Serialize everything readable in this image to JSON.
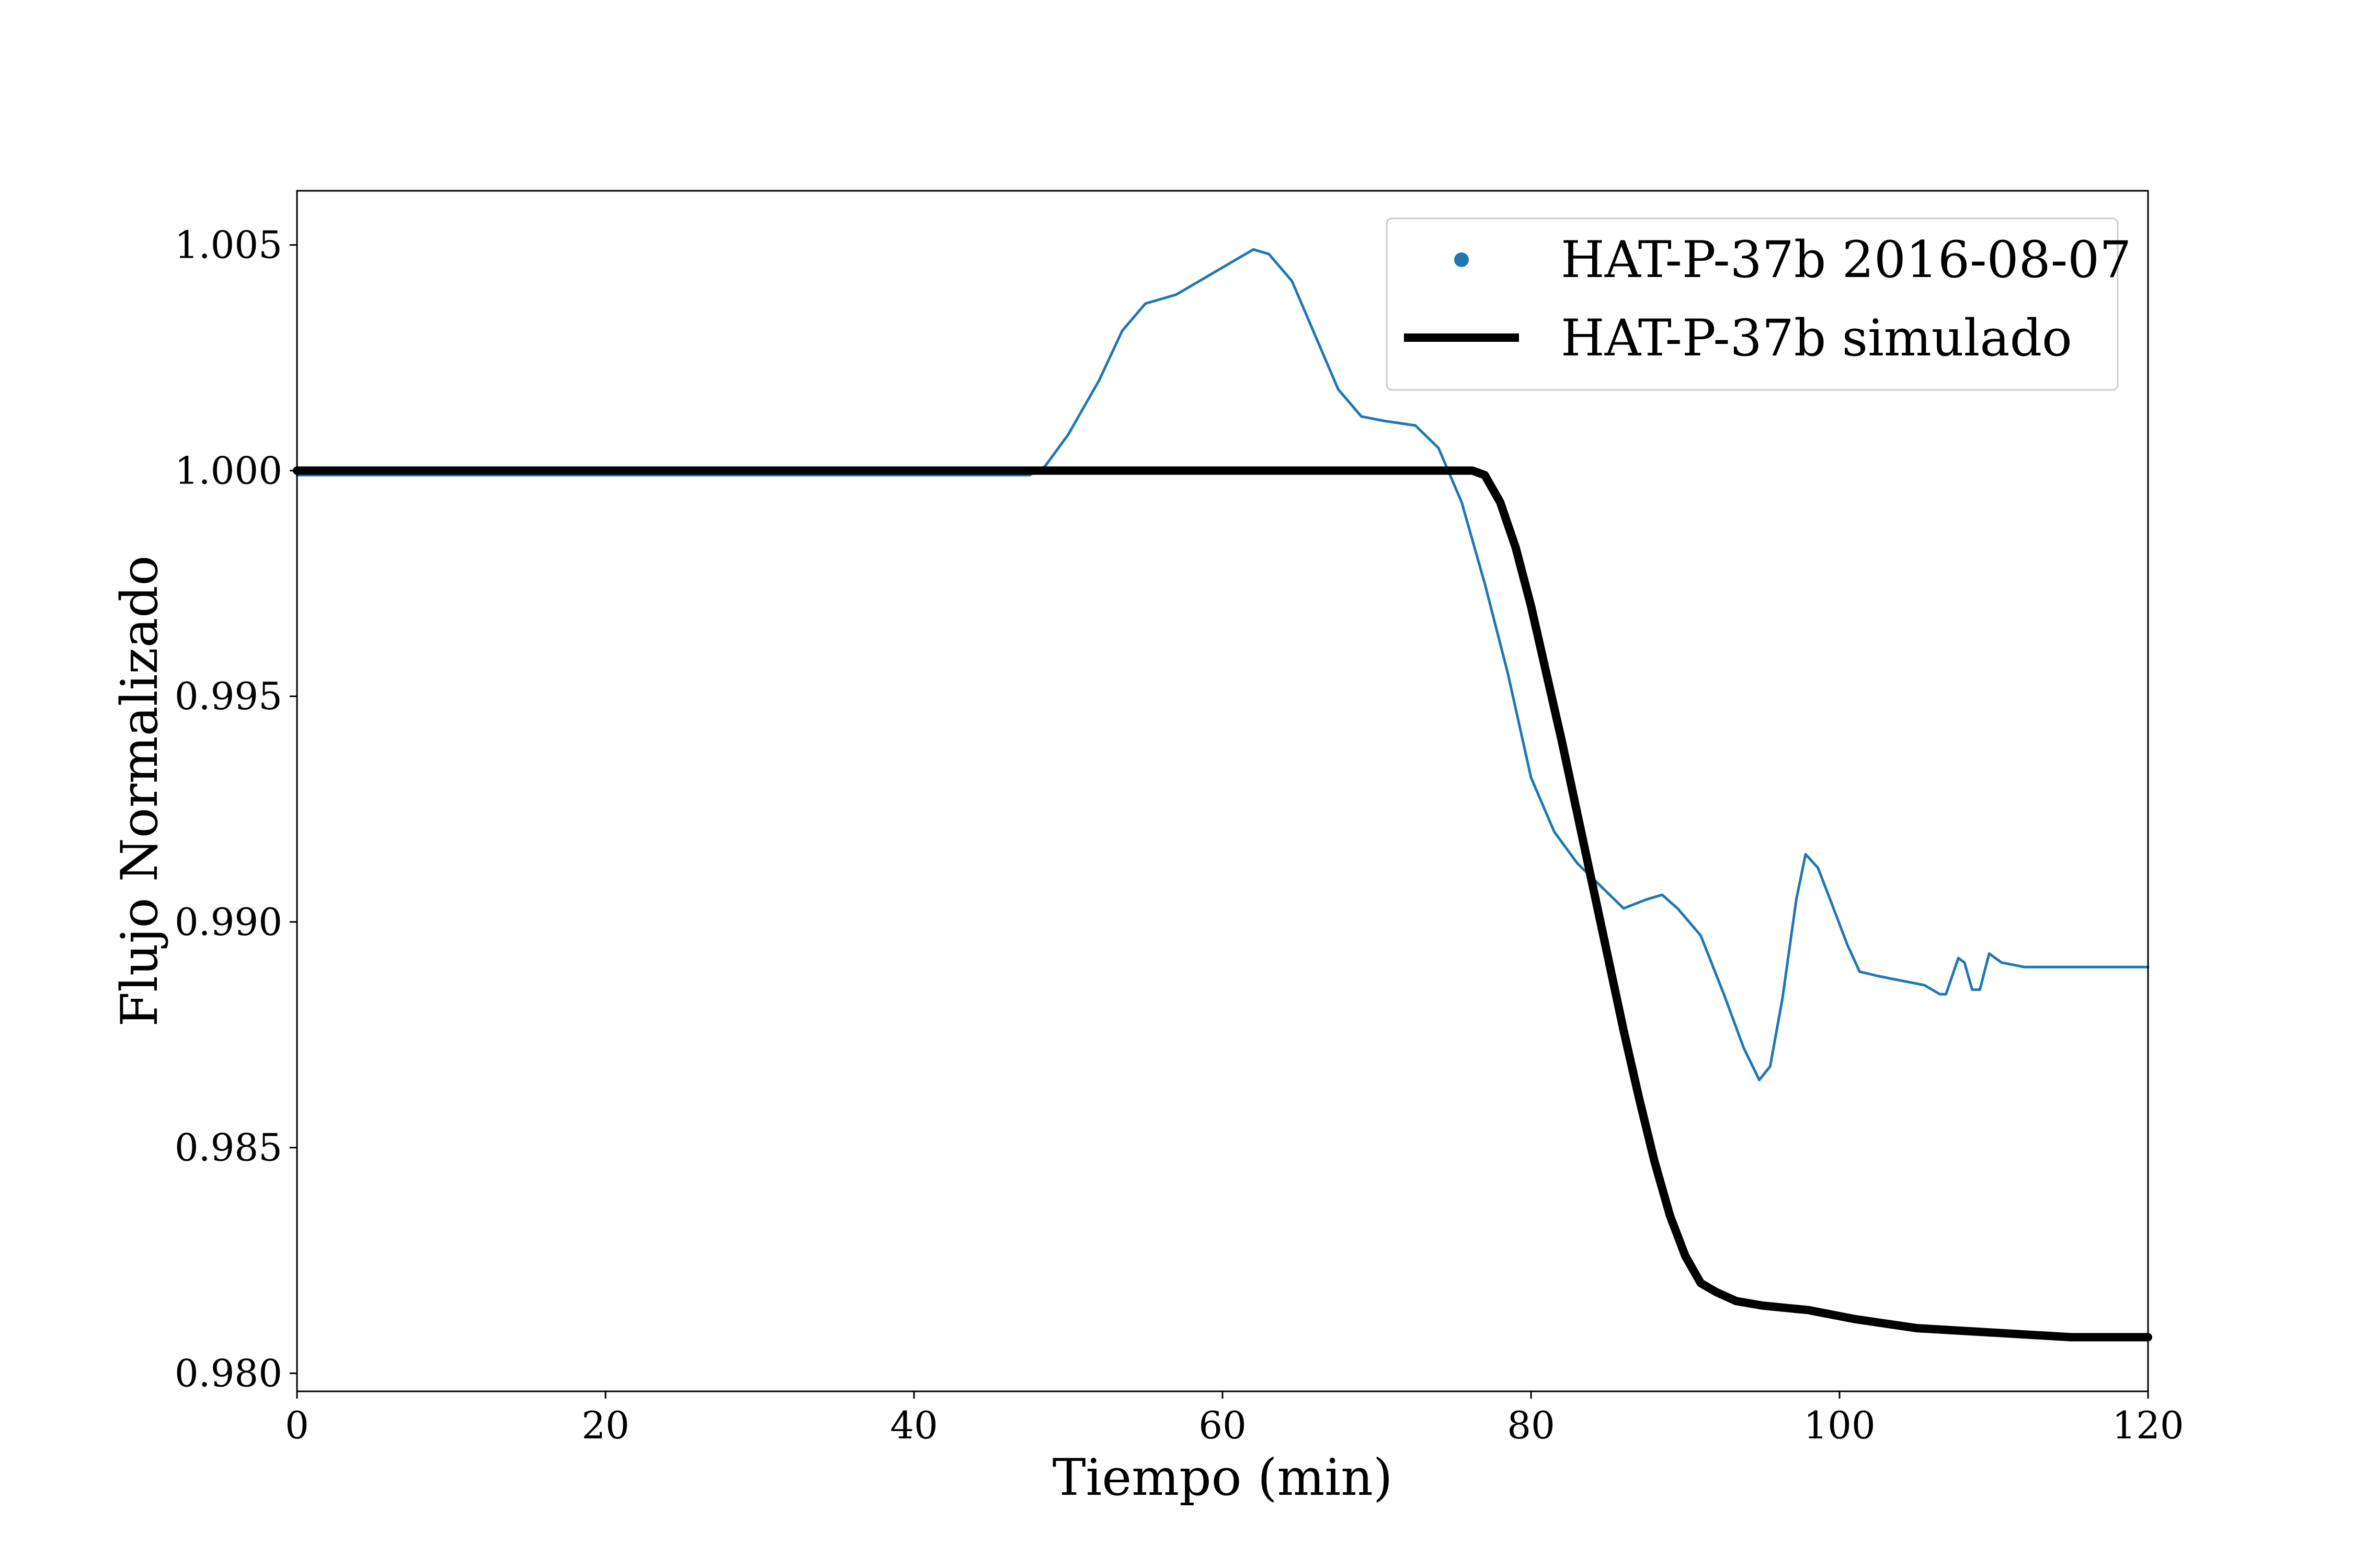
{
  "chart_data": {
    "type": "line",
    "title": "",
    "xlabel": "Tiempo (min)",
    "ylabel": "Flujo Normalizado",
    "xlim": [
      0,
      120
    ],
    "ylim": [
      0.9796,
      1.0062
    ],
    "x_ticks": [
      0,
      20,
      40,
      60,
      80,
      100,
      120
    ],
    "x_tick_labels": [
      "0",
      "20",
      "40",
      "60",
      "80",
      "100",
      "120"
    ],
    "y_ticks": [
      0.98,
      0.985,
      0.99,
      0.995,
      1.0,
      1.005
    ],
    "y_tick_labels": [
      "0.980",
      "0.985",
      "0.990",
      "0.995",
      "1.000",
      "1.005"
    ],
    "grid": false,
    "legend_position": "top-right",
    "series": [
      {
        "name": "HAT-P-37b 2016-08-07",
        "style": "observed",
        "color": "#1f77b4",
        "legend_marker": "dot",
        "points": [
          [
            0,
            0.9999
          ],
          [
            47.5,
            0.9999
          ],
          [
            48.5,
            1.0001
          ],
          [
            50,
            1.0008
          ],
          [
            52,
            1.002
          ],
          [
            53.5,
            1.0031
          ],
          [
            55,
            1.0037
          ],
          [
            57,
            1.0039
          ],
          [
            60,
            1.0045
          ],
          [
            62,
            1.0049
          ],
          [
            63,
            1.0048
          ],
          [
            64.5,
            1.0042
          ],
          [
            66,
            1.003
          ],
          [
            67.5,
            1.0018
          ],
          [
            69,
            1.0012
          ],
          [
            70.5,
            1.0011
          ],
          [
            72.5,
            1.001
          ],
          [
            74,
            1.0005
          ],
          [
            75.5,
            0.9993
          ],
          [
            77,
            0.9975
          ],
          [
            78.5,
            0.9955
          ],
          [
            80,
            0.9932
          ],
          [
            81.5,
            0.992
          ],
          [
            83,
            0.9913
          ],
          [
            84.5,
            0.9908
          ],
          [
            86,
            0.9903
          ],
          [
            87.5,
            0.9905
          ],
          [
            88.5,
            0.9906
          ],
          [
            89.5,
            0.9903
          ],
          [
            91,
            0.9897
          ],
          [
            92.5,
            0.9884
          ],
          [
            93.8,
            0.9872
          ],
          [
            94.8,
            0.9865
          ],
          [
            95.5,
            0.9868
          ],
          [
            96.3,
            0.9883
          ],
          [
            97.2,
            0.9905
          ],
          [
            97.8,
            0.9915
          ],
          [
            98.6,
            0.9912
          ],
          [
            99.5,
            0.9904
          ],
          [
            100.5,
            0.9895
          ],
          [
            101.3,
            0.9889
          ],
          [
            102.5,
            0.9888
          ],
          [
            104,
            0.9887
          ],
          [
            105.5,
            0.9886
          ],
          [
            106.5,
            0.9884
          ],
          [
            106.9,
            0.9884
          ],
          [
            107.7,
            0.9892
          ],
          [
            108.1,
            0.9891
          ],
          [
            108.6,
            0.9885
          ],
          [
            109.1,
            0.9885
          ],
          [
            109.7,
            0.9893
          ],
          [
            110.5,
            0.9891
          ],
          [
            112,
            0.989
          ],
          [
            114,
            0.989
          ],
          [
            117,
            0.989
          ],
          [
            120,
            0.989
          ]
        ]
      },
      {
        "name": "HAT-P-37b simulado",
        "style": "model",
        "color": "#000000",
        "legend_marker": "line",
        "points": [
          [
            0,
            1.0
          ],
          [
            76.2,
            1.0
          ],
          [
            77,
            0.9999
          ],
          [
            78,
            0.9993
          ],
          [
            79,
            0.9983
          ],
          [
            80,
            0.997
          ],
          [
            81,
            0.9955
          ],
          [
            82,
            0.994
          ],
          [
            83,
            0.9924
          ],
          [
            84,
            0.9908
          ],
          [
            85,
            0.9892
          ],
          [
            86,
            0.9876
          ],
          [
            87,
            0.9861
          ],
          [
            88,
            0.9847
          ],
          [
            89,
            0.9835
          ],
          [
            90,
            0.9826
          ],
          [
            91,
            0.982
          ],
          [
            92,
            0.9818
          ],
          [
            93.3,
            0.9816
          ],
          [
            95,
            0.9815
          ],
          [
            98,
            0.9814
          ],
          [
            101,
            0.9812
          ],
          [
            105,
            0.981
          ],
          [
            110,
            0.9809
          ],
          [
            115,
            0.9808
          ],
          [
            120,
            0.9808
          ]
        ]
      }
    ]
  }
}
